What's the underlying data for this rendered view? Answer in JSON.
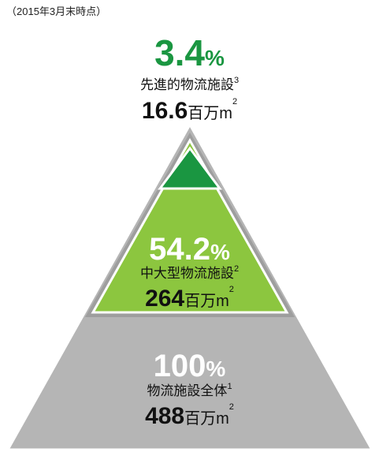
{
  "note_date": "（2015年3月末時点）",
  "tiers": [
    {
      "percent": "3.4",
      "percent_unit": "%",
      "label": "先進的物流施設",
      "footnote": "3",
      "area": "16.6",
      "area_unit": "百万m",
      "area_exp": "2"
    },
    {
      "percent": "54.2",
      "percent_unit": "%",
      "label": "中大型物流施設",
      "footnote": "2",
      "area": "264",
      "area_unit": "百万m",
      "area_exp": "2"
    },
    {
      "percent": "100",
      "percent_unit": "%",
      "label": "物流施設全体",
      "footnote": "1",
      "area": "488",
      "area_unit": "百万m",
      "area_exp": "2"
    }
  ]
}
